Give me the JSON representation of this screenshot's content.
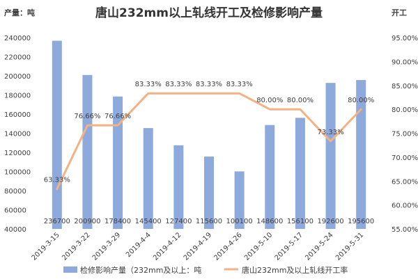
{
  "chart_data": {
    "type": "bar",
    "title": "唐山232mm以上轧线开工及检修影响产量",
    "ylabel_left": "产量：吨",
    "ylabel_right": "开工",
    "categories": [
      "2019-3-15",
      "2019-3-22",
      "2019-3-29",
      "2019-4-4",
      "2019-4-12",
      "2019-4-19",
      "2019-4-26",
      "2019-5-10",
      "2019-5-17",
      "2019-5-24",
      "2019-5-31"
    ],
    "series": [
      {
        "name": "检修影响产量（232mm及以上：吨",
        "type": "bar",
        "axis": "left",
        "color": "#8EA9DB",
        "values": [
          236700,
          200900,
          178400,
          145400,
          127400,
          115600,
          100100,
          148600,
          156100,
          192600,
          195600
        ],
        "labels": [
          "236700",
          "200900",
          "178400",
          "145400",
          "127400",
          "115600",
          "100100",
          "148600",
          "156100",
          "192600",
          "195600"
        ]
      },
      {
        "name": "唐山232mm及以上轧线开工率",
        "type": "line",
        "axis": "right",
        "color": "#F4B183",
        "values": [
          63.33,
          76.66,
          76.66,
          83.33,
          83.33,
          83.33,
          83.33,
          80.0,
          80.0,
          73.33,
          80.0
        ],
        "labels": [
          "63.33%",
          "76.66%",
          "76.66%",
          "83.33%",
          "83.33%",
          "83.33%",
          "83.33%",
          "80.00%",
          "80.00%",
          "73.33%",
          "80.00%"
        ]
      }
    ],
    "y_left": {
      "min": 40000,
      "max": 240000,
      "step": 20000,
      "ticks": [
        "40000",
        "60000",
        "80000",
        "100000",
        "120000",
        "140000",
        "160000",
        "180000",
        "200000",
        "220000",
        "240000"
      ]
    },
    "y_right": {
      "min": 55,
      "max": 95,
      "step": 5,
      "ticks": [
        "55.00%",
        "60.00%",
        "65.00%",
        "70.00%",
        "75.00%",
        "80.00%",
        "85.00%",
        "90.00%",
        "95.00%"
      ]
    },
    "grid": false,
    "legend_position": "bottom"
  }
}
